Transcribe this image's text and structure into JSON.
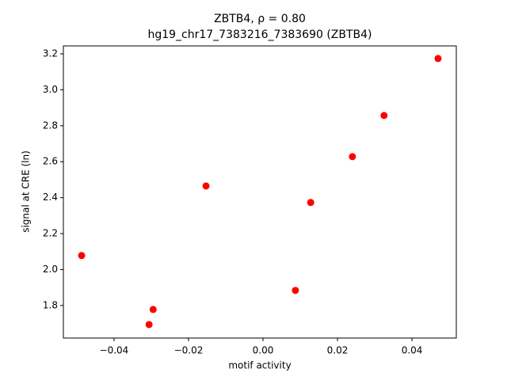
{
  "chart_data": {
    "type": "scatter",
    "title": "ZBTB4, ρ = 0.80",
    "subtitle": "hg19_chr17_7383216_7383690 (ZBTB4)",
    "x_label": "motif activity",
    "y_label": "signal at CRE (ln)",
    "color": "#ff0000",
    "x": [
      -0.0487,
      -0.0306,
      -0.0295,
      -0.0153,
      0.0087,
      0.0128,
      0.024,
      0.0325,
      0.047
    ],
    "y": [
      2.078,
      1.694,
      1.778,
      2.465,
      1.884,
      2.373,
      2.628,
      2.857,
      3.174
    ],
    "xlim": [
      -0.0536,
      0.0519
    ],
    "ylim": [
      1.619,
      3.244
    ],
    "xticks": [
      {
        "value": -0.04,
        "label": "−0.04"
      },
      {
        "value": -0.02,
        "label": "−0.02"
      },
      {
        "value": 0,
        "label": "0.00"
      },
      {
        "value": 0.02,
        "label": "0.02"
      },
      {
        "value": 0.04,
        "label": "0.04"
      }
    ],
    "yticks": [
      {
        "value": 1.8,
        "label": "1.8"
      },
      {
        "value": 2.0,
        "label": "2.0"
      },
      {
        "value": 2.2,
        "label": "2.2"
      },
      {
        "value": 2.4,
        "label": "2.4"
      },
      {
        "value": 2.6,
        "label": "2.6"
      },
      {
        "value": 2.8,
        "label": "2.8"
      },
      {
        "value": 3.0,
        "label": "3.0"
      },
      {
        "value": 3.2,
        "label": "3.2"
      }
    ],
    "grid": false
  }
}
